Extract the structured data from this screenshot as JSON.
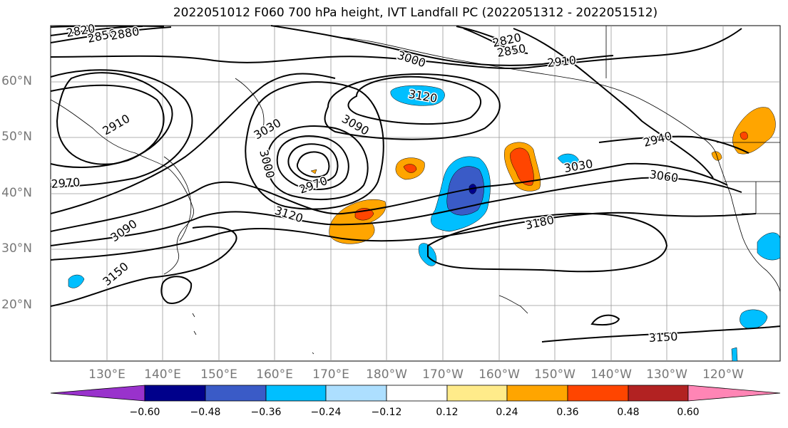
{
  "title": "2022051012 F060 700 hPa height, IVT Landfall PC (2022051312 - 2022051512)",
  "map": {
    "lat_labels": [
      "60°N",
      "50°N",
      "40°N",
      "30°N",
      "20°N"
    ],
    "lon_labels": [
      "130°E",
      "140°E",
      "150°E",
      "160°E",
      "170°E",
      "180°W",
      "170°W",
      "160°W",
      "150°W",
      "140°W",
      "130°W",
      "120°W"
    ],
    "contour_labels": [
      "2820",
      "2850",
      "2880",
      "3000",
      "2820",
      "2850",
      "2910",
      "3120",
      "3090",
      "2910",
      "3030",
      "3000",
      "2970",
      "2970",
      "3120",
      "3030",
      "3060",
      "2940",
      "3090",
      "3180",
      "3150",
      "3150"
    ],
    "colors": {
      "neg_060": "#9932CC",
      "neg_048": "#00008B",
      "neg_036": "#3A5BC7",
      "neg_024": "#00BFFF",
      "neg_012": "#ADDFFF",
      "zero": "#FFFFFF",
      "pos_012": "#FFEB8A",
      "pos_024": "#FFA500",
      "pos_036": "#FF4500",
      "pos_048": "#B22222",
      "pos_060": "#FF85B5"
    }
  },
  "colorbar": {
    "ticks": [
      "−0.60",
      "−0.48",
      "−0.36",
      "−0.24",
      "−0.12",
      "0.12",
      "0.24",
      "0.36",
      "0.48",
      "0.60"
    ]
  }
}
